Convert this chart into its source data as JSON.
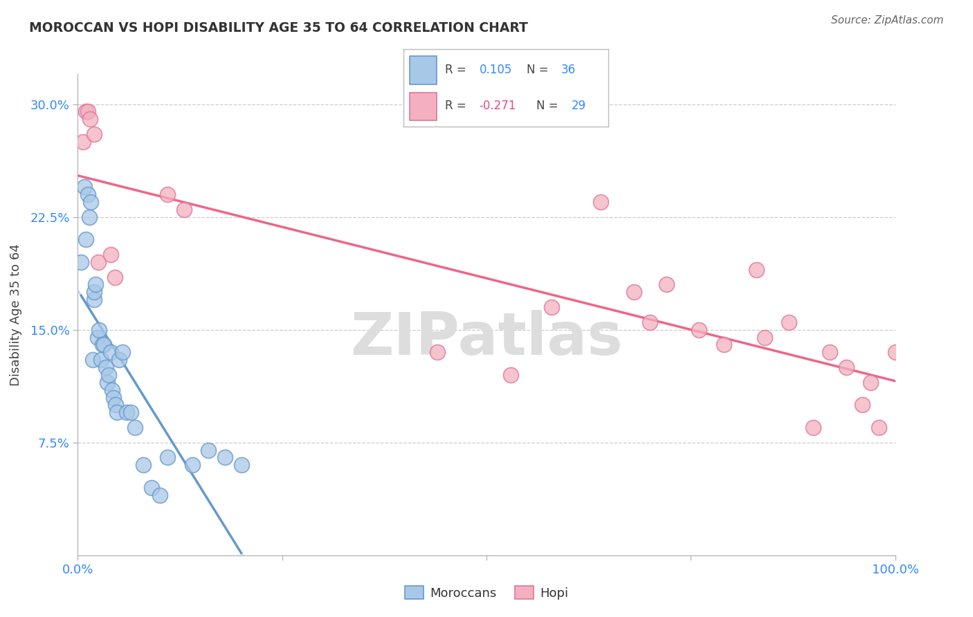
{
  "title": "MOROCCAN VS HOPI DISABILITY AGE 35 TO 64 CORRELATION CHART",
  "source": "Source: ZipAtlas.com",
  "ylabel": "Disability Age 35 to 64",
  "xlim": [
    0,
    1.0
  ],
  "ylim": [
    0,
    0.32
  ],
  "ytick_vals": [
    0.075,
    0.15,
    0.225,
    0.3
  ],
  "ytick_labels": [
    "7.5%",
    "15.0%",
    "22.5%",
    "30.0%"
  ],
  "xtick_vals": [
    0.0,
    0.25,
    0.5,
    0.75,
    1.0
  ],
  "xtick_labels": [
    "0.0%",
    "",
    "",
    "",
    "100.0%"
  ],
  "moroccan_R": "0.105",
  "moroccan_N": "36",
  "hopi_R": "-0.271",
  "hopi_N": "29",
  "moroccan_fill": "#a8c8e8",
  "moroccan_edge": "#6699cc",
  "hopi_fill": "#f4b0c0",
  "hopi_edge": "#dd7799",
  "trend_moroccan_color": "#6699cc",
  "trend_moroccan_dashed_color": "#aaccee",
  "trend_hopi_color": "#ee6688",
  "watermark": "ZIPatlas",
  "label_color": "#3388ff",
  "neg_label_color": "#ee4488",
  "moroccan_x": [
    0.004,
    0.008,
    0.01,
    0.012,
    0.014,
    0.016,
    0.018,
    0.02,
    0.02,
    0.022,
    0.024,
    0.026,
    0.028,
    0.03,
    0.032,
    0.034,
    0.036,
    0.038,
    0.04,
    0.042,
    0.044,
    0.046,
    0.048,
    0.05,
    0.055,
    0.06,
    0.065,
    0.07,
    0.08,
    0.09,
    0.1,
    0.11,
    0.14,
    0.16,
    0.18,
    0.2
  ],
  "moroccan_y": [
    0.195,
    0.245,
    0.21,
    0.24,
    0.225,
    0.235,
    0.13,
    0.17,
    0.175,
    0.18,
    0.145,
    0.15,
    0.13,
    0.14,
    0.14,
    0.125,
    0.115,
    0.12,
    0.135,
    0.11,
    0.105,
    0.1,
    0.095,
    0.13,
    0.135,
    0.095,
    0.095,
    0.085,
    0.06,
    0.045,
    0.04,
    0.065,
    0.06,
    0.07,
    0.065,
    0.06
  ],
  "hopi_x": [
    0.006,
    0.01,
    0.012,
    0.015,
    0.02,
    0.025,
    0.04,
    0.045,
    0.11,
    0.13,
    0.44,
    0.53,
    0.58,
    0.64,
    0.68,
    0.7,
    0.72,
    0.76,
    0.79,
    0.83,
    0.84,
    0.87,
    0.9,
    0.92,
    0.94,
    0.96,
    0.97,
    0.98,
    1.0
  ],
  "hopi_y": [
    0.275,
    0.295,
    0.295,
    0.29,
    0.28,
    0.195,
    0.2,
    0.185,
    0.24,
    0.23,
    0.135,
    0.12,
    0.165,
    0.235,
    0.175,
    0.155,
    0.18,
    0.15,
    0.14,
    0.19,
    0.145,
    0.155,
    0.085,
    0.135,
    0.125,
    0.1,
    0.115,
    0.085,
    0.135
  ]
}
